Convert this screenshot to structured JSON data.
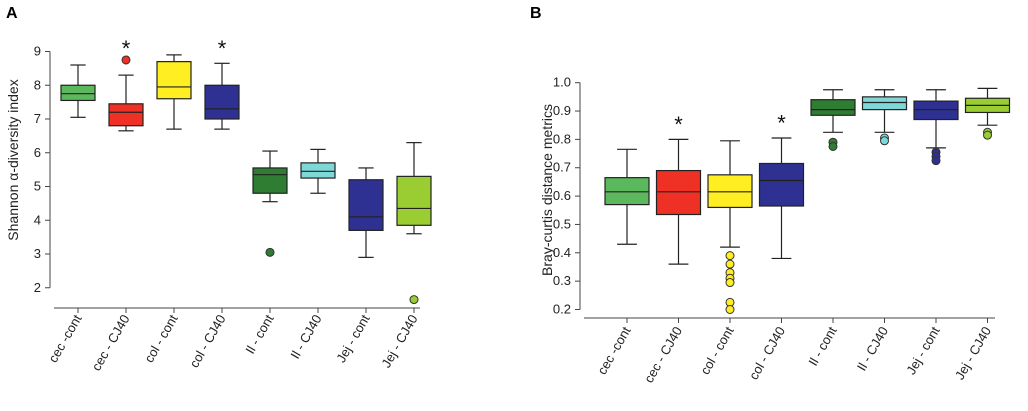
{
  "chart_data": [
    {
      "panel": "A",
      "type": "box",
      "ylabel": "Shannon α-diversity index",
      "xlabel": "",
      "ylim": [
        1.4,
        9.4
      ],
      "yticks": [
        2,
        3,
        4,
        5,
        6,
        7,
        8,
        9
      ],
      "categories": [
        "cec -cont",
        "cec - CJ40",
        "col - cont",
        "col - CJ40",
        "Il - cont",
        "Il - CJ40",
        "Jej - cont",
        "Jej - CJ40"
      ],
      "colors": [
        "#5cb85c",
        "#ee3124",
        "#ffee22",
        "#2e3192",
        "#2e7d32",
        "#7fd8d8",
        "#2e3192",
        "#9acd32"
      ],
      "boxes": [
        {
          "whisker_low": 7.05,
          "q1": 7.55,
          "median": 7.75,
          "q3": 8.0,
          "whisker_high": 8.6,
          "outliers": []
        },
        {
          "whisker_low": 6.65,
          "q1": 6.8,
          "median": 7.2,
          "q3": 7.45,
          "whisker_high": 8.3,
          "outliers": [
            8.75
          ]
        },
        {
          "whisker_low": 6.7,
          "q1": 7.6,
          "median": 7.95,
          "q3": 8.7,
          "whisker_high": 8.9,
          "outliers": []
        },
        {
          "whisker_low": 6.7,
          "q1": 7.0,
          "median": 7.3,
          "q3": 8.0,
          "whisker_high": 8.65,
          "outliers": []
        },
        {
          "whisker_low": 4.55,
          "q1": 4.8,
          "median": 5.35,
          "q3": 5.55,
          "whisker_high": 6.05,
          "outliers": [
            3.05
          ]
        },
        {
          "whisker_low": 4.8,
          "q1": 5.25,
          "median": 5.45,
          "q3": 5.7,
          "whisker_high": 6.1,
          "outliers": []
        },
        {
          "whisker_low": 2.9,
          "q1": 3.7,
          "median": 4.1,
          "q3": 5.2,
          "whisker_high": 5.55,
          "outliers": []
        },
        {
          "whisker_low": 3.6,
          "q1": 3.85,
          "median": 4.35,
          "q3": 5.3,
          "whisker_high": 6.3,
          "outliers": [
            1.65
          ]
        }
      ],
      "significance_marks": [
        {
          "category_index": 1,
          "label": "*",
          "y": 9.1
        },
        {
          "category_index": 3,
          "label": "*",
          "y": 9.1
        }
      ]
    },
    {
      "panel": "B",
      "type": "box",
      "ylabel": "Bray-curtis distance metrics",
      "xlabel": "",
      "ylim": [
        0.17,
        1.08
      ],
      "yticks": [
        "0.2",
        "0.3",
        "0.4",
        "0.5",
        "0.6",
        "0.7",
        "0.8",
        "0.9",
        "1.0"
      ],
      "categories": [
        "cec -cont",
        "cec - CJ40",
        "col - cont",
        "col - CJ40",
        "Il - cont",
        "Il - CJ40",
        "Jej - cont",
        "Jej - CJ40"
      ],
      "colors": [
        "#5cb85c",
        "#ee3124",
        "#ffee22",
        "#2e3192",
        "#2e7d32",
        "#7fd8d8",
        "#2e3192",
        "#9acd32"
      ],
      "boxes": [
        {
          "whisker_low": 0.43,
          "q1": 0.57,
          "median": 0.615,
          "q3": 0.665,
          "whisker_high": 0.765,
          "outliers": []
        },
        {
          "whisker_low": 0.36,
          "q1": 0.535,
          "median": 0.615,
          "q3": 0.69,
          "whisker_high": 0.8,
          "outliers": []
        },
        {
          "whisker_low": 0.42,
          "q1": 0.56,
          "median": 0.615,
          "q3": 0.675,
          "whisker_high": 0.795,
          "outliers": [
            0.39,
            0.36,
            0.33,
            0.31,
            0.295,
            0.225,
            0.2
          ]
        },
        {
          "whisker_low": 0.38,
          "q1": 0.565,
          "median": 0.655,
          "q3": 0.715,
          "whisker_high": 0.805,
          "outliers": []
        },
        {
          "whisker_low": 0.825,
          "q1": 0.885,
          "median": 0.905,
          "q3": 0.94,
          "whisker_high": 0.975,
          "outliers": [
            0.79,
            0.775
          ]
        },
        {
          "whisker_low": 0.825,
          "q1": 0.905,
          "median": 0.93,
          "q3": 0.95,
          "whisker_high": 0.975,
          "outliers": [
            0.805,
            0.795
          ]
        },
        {
          "whisker_low": 0.77,
          "q1": 0.87,
          "median": 0.905,
          "q3": 0.935,
          "whisker_high": 0.975,
          "outliers": [
            0.755,
            0.74,
            0.725
          ]
        },
        {
          "whisker_low": 0.85,
          "q1": 0.895,
          "median": 0.92,
          "q3": 0.945,
          "whisker_high": 0.98,
          "outliers": [
            0.825,
            0.815
          ]
        }
      ],
      "significance_marks": [
        {
          "category_index": 1,
          "label": "*",
          "y": 0.855
        },
        {
          "category_index": 3,
          "label": "*",
          "y": 0.86
        }
      ]
    }
  ]
}
